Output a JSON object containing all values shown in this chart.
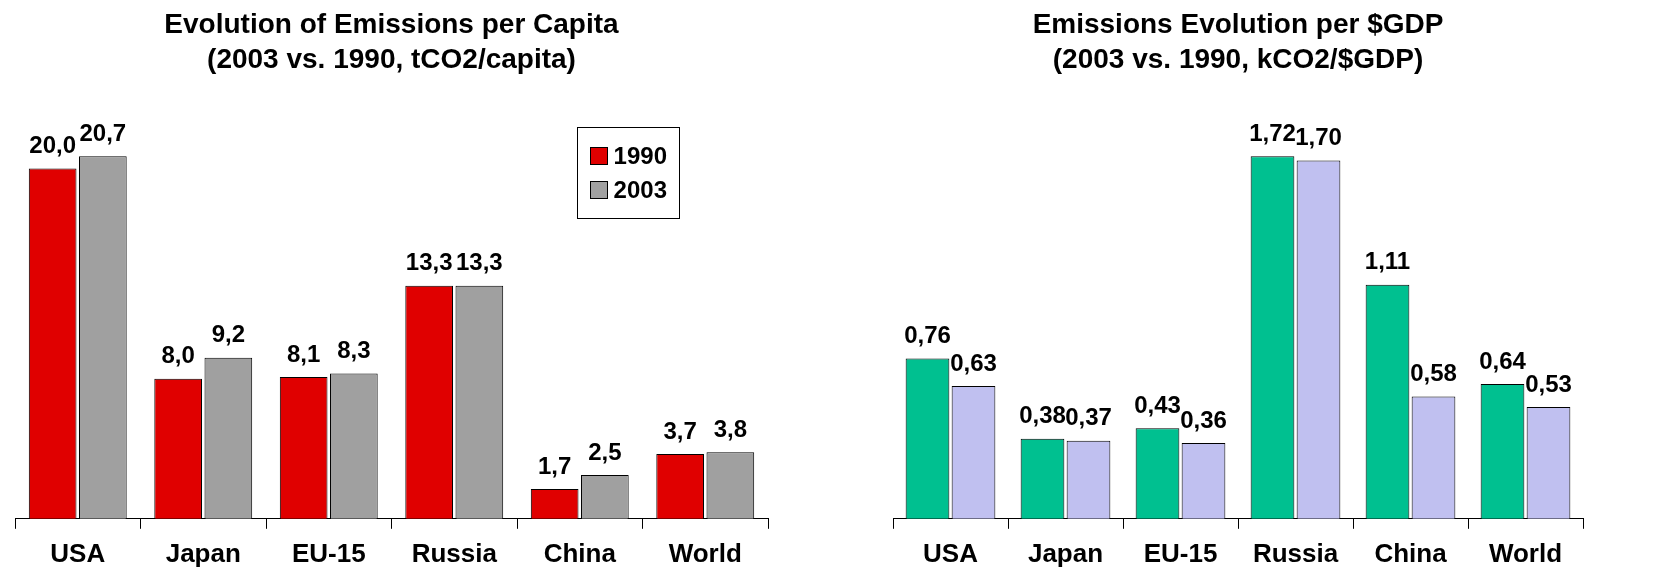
{
  "chart_data": [
    {
      "type": "bar",
      "title": "Evolution of Emissions per Capita",
      "subtitle": "(2003 vs. 1990, tCO2/capita)",
      "categories": [
        "USA",
        "Japan",
        "EU-15",
        "Russia",
        "China",
        "World"
      ],
      "series": [
        {
          "name": "1990",
          "color": "#e00000",
          "values": [
            20.0,
            8.0,
            8.1,
            13.3,
            1.7,
            3.7
          ],
          "value_labels": [
            "20,0",
            "8,0",
            "8,1",
            "13,3",
            "1,7",
            "3,7"
          ]
        },
        {
          "name": "2003",
          "color": "#a0a0a0",
          "values": [
            20.7,
            9.2,
            8.3,
            13.3,
            2.5,
            3.8
          ],
          "value_labels": [
            "20,7",
            "9,2",
            "8,3",
            "13,3",
            "2,5",
            "3,8"
          ]
        }
      ],
      "legend": "top right",
      "grid": false
    },
    {
      "type": "bar",
      "title": "Emissions Evolution per $GDP",
      "subtitle": "(2003 vs. 1990, kCO2/$GDP)",
      "categories": [
        "USA",
        "Japan",
        "EU-15",
        "Russia",
        "China",
        "World"
      ],
      "series": [
        {
          "color": "#00c090",
          "values": [
            0.76,
            0.38,
            0.43,
            1.72,
            1.11,
            0.64
          ],
          "value_labels": [
            "0,76",
            "0,38",
            "0,43",
            "1,72",
            "1,11",
            "0,64"
          ]
        },
        {
          "color": "#c0c0f0",
          "values": [
            0.63,
            0.37,
            0.36,
            1.7,
            0.58,
            0.53
          ],
          "value_labels": [
            "0,63",
            "0,37",
            "0,36",
            "1,70",
            "0,58",
            "0,53"
          ]
        }
      ],
      "legend": false,
      "grid": false
    }
  ]
}
